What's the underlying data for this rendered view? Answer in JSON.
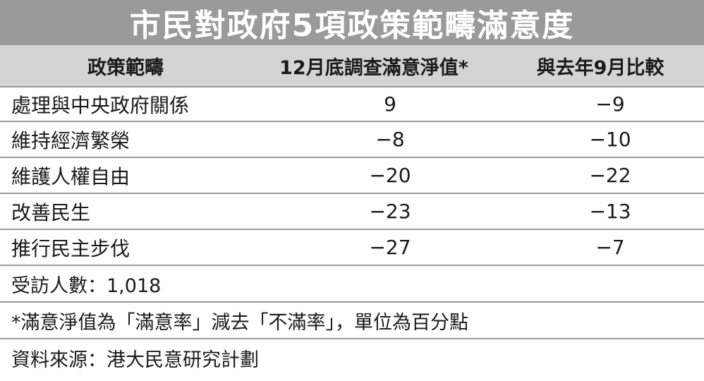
{
  "chart_data": {
    "type": "table",
    "title": "市民對政府5項政策範疇滿意度",
    "columns": [
      "政策範疇",
      "12月底調查滿意淨值*",
      "與去年9月比較"
    ],
    "rows": [
      {
        "category": "處理與中央政府關係",
        "value": "9",
        "change": "−9"
      },
      {
        "category": "維持經濟繁榮",
        "value": "−8",
        "change": "−10"
      },
      {
        "category": "維護人權自由",
        "value": "−20",
        "change": "−22"
      },
      {
        "category": "改善民生",
        "value": "−23",
        "change": "−13"
      },
      {
        "category": "推行民主步伐",
        "value": "−27",
        "change": "−7"
      }
    ],
    "respondents": "受訪人數：1,018",
    "footnote": "*滿意淨值為「滿意率」減去「不滿率」，單位為百分點",
    "source": "資料來源：港大民意研究計劃"
  },
  "colors": {
    "title_bg": "#9a9a9a",
    "header_bg": "#d4d4d4",
    "rule": "#9a9a9a"
  }
}
